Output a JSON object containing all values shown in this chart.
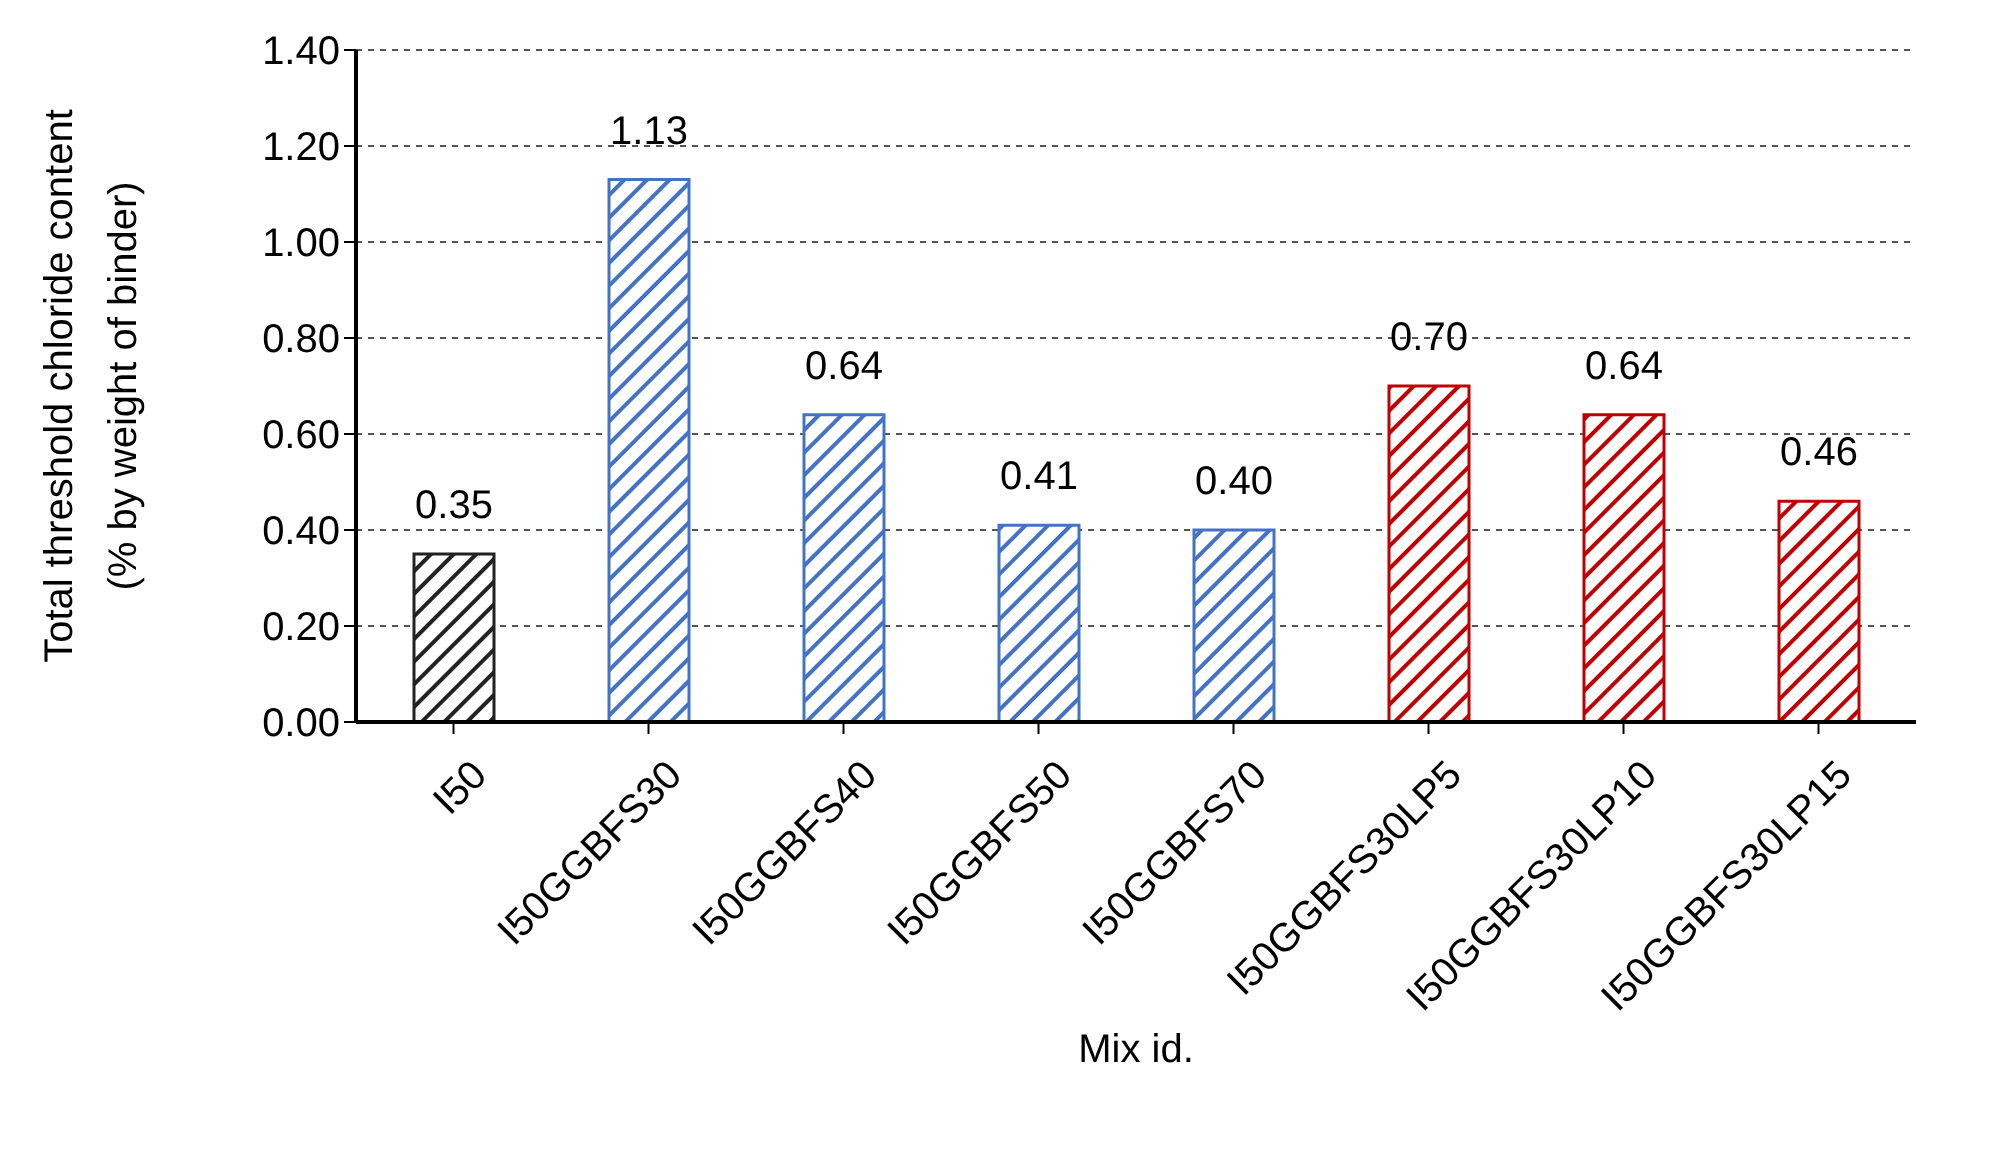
{
  "chart_data": {
    "type": "bar",
    "xlabel": "Mix id.",
    "ylabel": "Total threshold chloride content\n(% by weight of binder)",
    "categories": [
      "I50",
      "I50GGBFS30",
      "I50GGBFS40",
      "I50GGBFS50",
      "I50GGBFS70",
      "I50GGBFS30LP5",
      "I50GGBFS30LP10",
      "I50GGBFS30LP15"
    ],
    "values": [
      0.35,
      1.13,
      0.64,
      0.41,
      0.4,
      0.7,
      0.64,
      0.46
    ],
    "value_labels": [
      "0.35",
      "1.13",
      "0.64",
      "0.41",
      "0.40",
      "0.70",
      "0.64",
      "0.46"
    ],
    "colors": [
      "#222222",
      "#4472c4",
      "#4472c4",
      "#4472c4",
      "#4472c4",
      "#c00000",
      "#c00000",
      "#c00000"
    ],
    "ylim": [
      0,
      1.4
    ],
    "yticks": [
      {
        "value": 0,
        "label": "0.00"
      },
      {
        "value": 0.2,
        "label": "0.20"
      },
      {
        "value": 0.4,
        "label": "0.40"
      },
      {
        "value": 0.6,
        "label": "0.60"
      },
      {
        "value": 0.8,
        "label": "0.80"
      },
      {
        "value": 1,
        "label": "1.00"
      },
      {
        "value": 1.2,
        "label": "1.20"
      },
      {
        "value": 1.4,
        "label": "1.40"
      }
    ],
    "grid": "y",
    "legend": false
  }
}
